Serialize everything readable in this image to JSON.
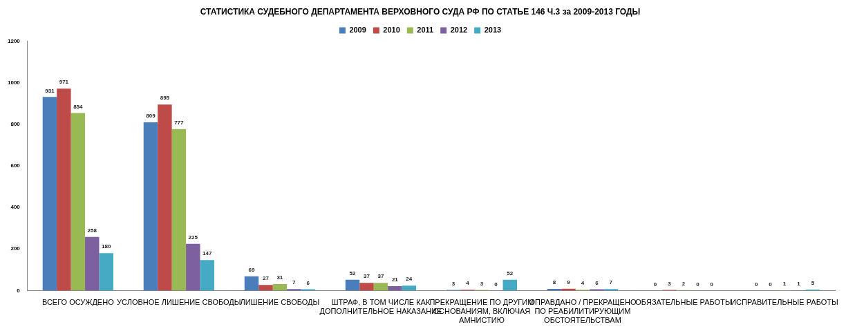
{
  "chart_data": {
    "type": "bar",
    "title": "СТАТИСТИКА СУДЕБНОГО ДЕПАРТАМЕНТА ВЕРХОВНОГО СУДА РФ ПО СТАТЬЕ 146 Ч.3 за 2009-2013 ГОДЫ",
    "categories": [
      "ВСЕГО ОСУЖДЕНО",
      "УСЛОВНОЕ ЛИШЕНИЕ СВОБОДЫ",
      "ЛИШЕНИЕ СВОБОДЫ",
      "ШТРАФ, В ТОМ ЧИСЛЕ КАК ДОПОЛНИТЕЛЬНОЕ НАКАЗАНИЕ",
      "ПРЕКРАЩЕНИЕ ПО ДРУГИМ ОСНОВАНИЯМ, ВКЛЮЧАЯ АМНИСТИЮ",
      "ОПРАВДАНО / ПРЕКРАЩЕНО ПО РЕАБИЛИТИРУЮЩИМ ОБСТОЯТЕЛЬСТВАМ",
      "ОБЯЗАТЕЛЬНЫЕ РАБОТЫ",
      "ИСПРАВИТЕЛЬНЫЕ РАБОТЫ"
    ],
    "series": [
      {
        "name": "2009",
        "color": "#4a7ebb",
        "values": [
          931,
          809,
          69,
          52,
          3,
          8,
          0,
          0
        ]
      },
      {
        "name": "2010",
        "color": "#be4b48",
        "values": [
          971,
          895,
          27,
          37,
          4,
          9,
          3,
          0
        ]
      },
      {
        "name": "2011",
        "color": "#98b954",
        "values": [
          854,
          777,
          31,
          37,
          3,
          4,
          2,
          1
        ]
      },
      {
        "name": "2012",
        "color": "#7d60a0",
        "values": [
          258,
          225,
          7,
          21,
          0,
          6,
          0,
          1
        ]
      },
      {
        "name": "2013",
        "color": "#46aac5",
        "values": [
          180,
          147,
          6,
          24,
          52,
          7,
          0,
          5
        ]
      }
    ],
    "ylim": [
      0,
      1200
    ],
    "yticks": [
      0,
      200,
      400,
      600,
      800,
      1000,
      1200
    ],
    "grid": false,
    "legend": "top",
    "data_labels": true
  }
}
